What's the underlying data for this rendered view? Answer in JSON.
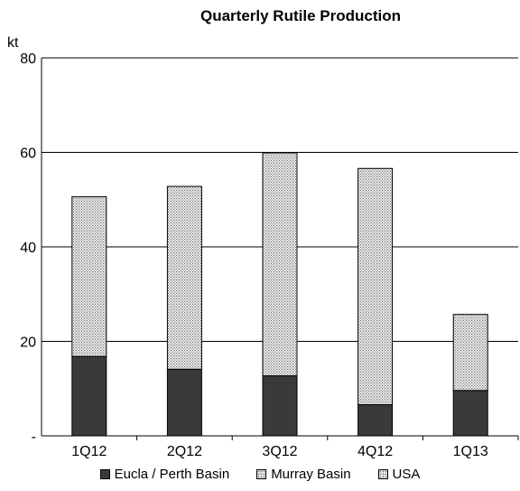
{
  "chart_data": {
    "type": "bar",
    "stacked": true,
    "title": "Quarterly Rutile Production",
    "ylabel": "kt",
    "ylim": [
      0,
      80
    ],
    "yticks": [
      "-",
      "20",
      "40",
      "60",
      "80"
    ],
    "grid": true,
    "legend_position": "bottom",
    "categories": [
      "1Q12",
      "2Q12",
      "3Q12",
      "4Q12",
      "1Q13"
    ],
    "series": [
      {
        "name": "Eucla / Perth Basin",
        "values": [
          16.8,
          14.1,
          12.7,
          6.6,
          9.6
        ],
        "color": "#3a3a3a",
        "pattern": "solid"
      },
      {
        "name": "Murray Basin",
        "values": [
          33.8,
          38.7,
          47.2,
          50.0,
          16.1
        ],
        "color": "#c8c8c8",
        "pattern": "dots"
      },
      {
        "name": "USA",
        "values": [
          0,
          0,
          0,
          0,
          0
        ],
        "color": "#b4b4b4",
        "pattern": "dots"
      }
    ]
  }
}
